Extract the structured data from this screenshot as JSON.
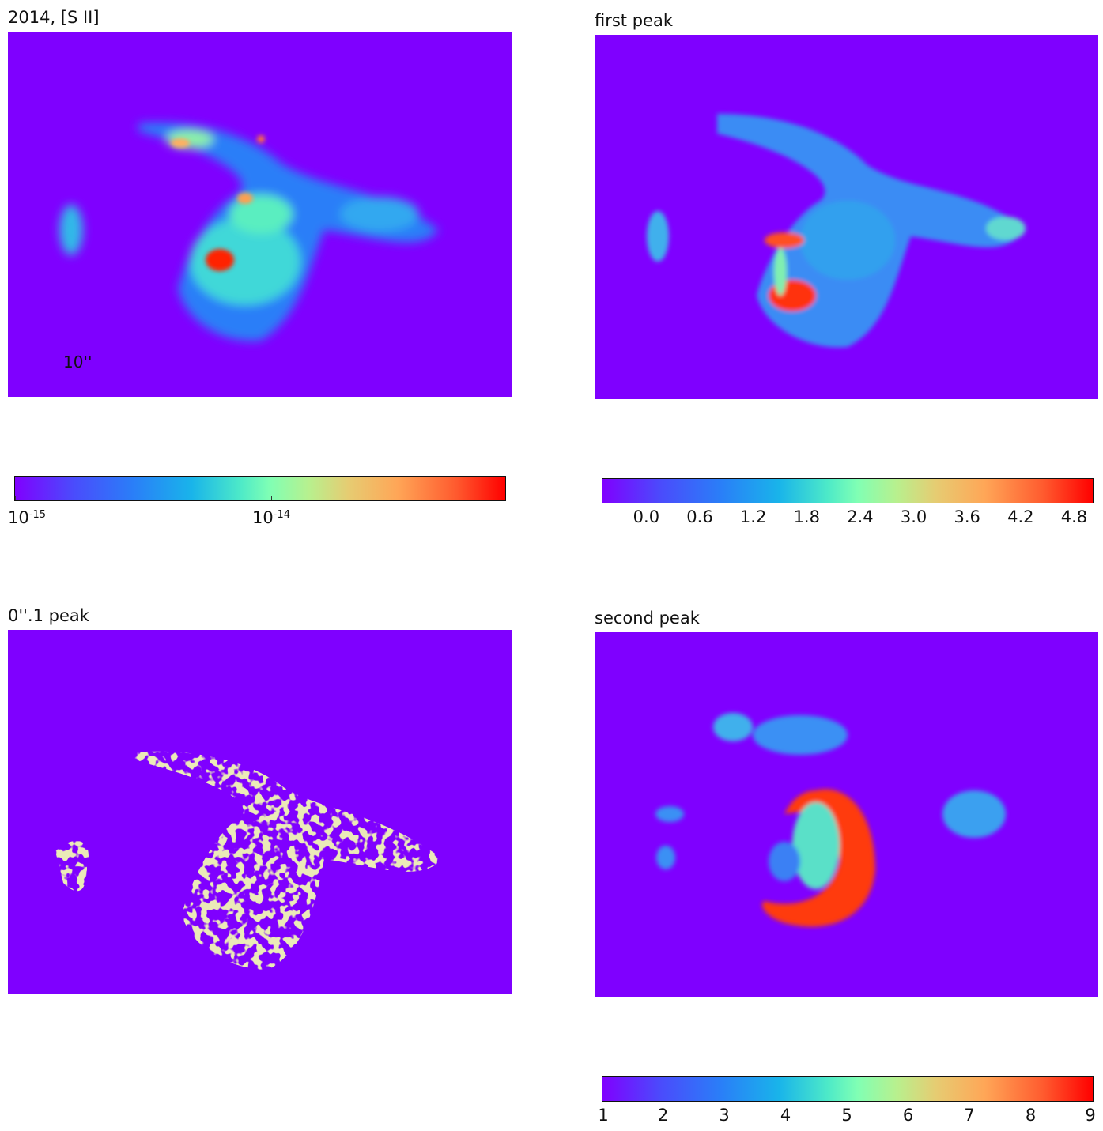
{
  "chart_data": [
    {
      "type": "heatmap",
      "title": "2014, [S II]",
      "scale_bar_label": "10''",
      "colorbar": {
        "scale": "log",
        "range": [
          1e-15,
          3e-14
        ],
        "ticks": [
          {
            "base": "10",
            "exp": "-15"
          },
          {
            "base": "10",
            "exp": "-14"
          }
        ]
      },
      "colormap": "rainbow"
    },
    {
      "type": "heatmap",
      "title": "first peak",
      "colorbar": {
        "scale": "linear",
        "range": [
          -0.5,
          5.0
        ],
        "ticks": [
          "0.0",
          "0.6",
          "1.2",
          "1.8",
          "2.4",
          "3.0",
          "3.6",
          "4.2",
          "4.8"
        ]
      },
      "colormap": "rainbow"
    },
    {
      "type": "heatmap",
      "title": "0''.1 peak",
      "colormap": "binary purple/yellow"
    },
    {
      "type": "heatmap",
      "title": "second peak",
      "colorbar": {
        "scale": "linear",
        "range": [
          1,
          9
        ],
        "ticks": [
          "1",
          "2",
          "3",
          "4",
          "5",
          "6",
          "7",
          "8",
          "9"
        ]
      },
      "colormap": "rainbow"
    }
  ],
  "colors": {
    "background": "#7f00ff",
    "mask_yellow": "#d4d27a"
  }
}
